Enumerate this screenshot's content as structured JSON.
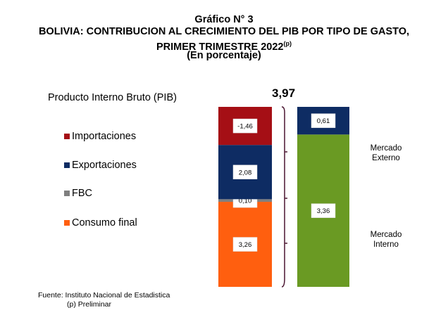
{
  "header": {
    "line1": "Gráfico N° 3",
    "line2": "BOLIVIA: CONTRIBUCION AL CRECIMIENTO DEL PIB POR TIPO DE GASTO,",
    "line3": "PRIMER TRIMESTRE 2022",
    "line3_sup": "(p)",
    "line4": "(En porcentaje)"
  },
  "pib_label": "Producto Interno Bruto (PIB)",
  "total_value": "3,97",
  "legend": [
    {
      "label": "Importaciones",
      "color": "#a50f15"
    },
    {
      "label": "Exportaciones",
      "color": "#0e2c63"
    },
    {
      "label": "FBC",
      "color": "#7f7f7f"
    },
    {
      "label": "Consumo final",
      "color": "#ff5f0f"
    }
  ],
  "side_labels": {
    "externo": [
      "Mercado",
      "Externo"
    ],
    "interno": [
      "Mercado",
      "Interno"
    ]
  },
  "source": {
    "line1": "Fuente: Instituto Nacional de Estadistica",
    "line2": "(p) Preliminar"
  },
  "chart_data": {
    "type": "bar",
    "stacked": true,
    "total": 3.97,
    "bars": [
      {
        "segments": [
          {
            "name": "Consumo final",
            "value": 3.26,
            "label": "3,26",
            "color": "#ff5f0f"
          },
          {
            "name": "FBC",
            "value": 0.1,
            "label": "0,10",
            "color": "#7f7f7f"
          },
          {
            "name": "Exportaciones",
            "value": 2.08,
            "label": "2,08",
            "color": "#0e2c63"
          },
          {
            "name": "Importaciones",
            "value": -1.46,
            "label": "-1,46",
            "color": "#a50f15"
          }
        ]
      },
      {
        "segments": [
          {
            "name": "Mercado Interno",
            "value": 3.36,
            "label": "3,36",
            "color": "#6a9a23"
          },
          {
            "name": "Mercado Externo",
            "value": 0.61,
            "label": "0,61",
            "color": "#0e2c63"
          }
        ]
      }
    ],
    "brace_color": "#4a1530"
  }
}
